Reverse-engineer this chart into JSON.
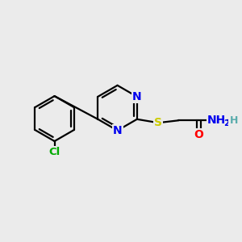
{
  "background_color": "#ebebeb",
  "atom_colors": {
    "C": "#000000",
    "N": "#0000ee",
    "S": "#cccc00",
    "O": "#ff0000",
    "Cl": "#00aa00",
    "H": "#5aacac"
  },
  "bond_color": "#000000",
  "bond_width": 1.6,
  "font_size_atom": 10,
  "font_size_small": 8.5
}
